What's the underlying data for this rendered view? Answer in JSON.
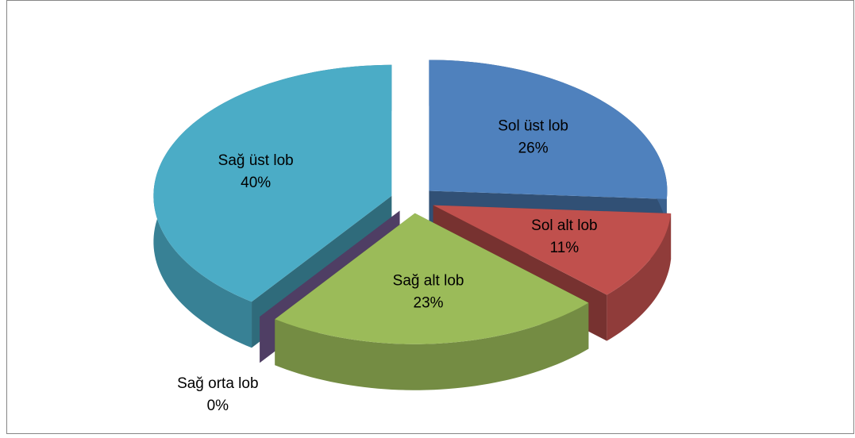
{
  "chart_data": {
    "type": "pie3d",
    "categories": [
      "Sol üst lob",
      "Sol alt lob",
      "Sağ alt lob",
      "Sağ orta lob",
      "Sağ üst lob"
    ],
    "values": [
      26,
      11,
      23,
      0,
      40
    ],
    "value_labels": [
      "26%",
      "11%",
      "23%",
      "0%",
      "40%"
    ],
    "colors": [
      "#4f81bd",
      "#c0504d",
      "#9bbb59",
      "#8064a2",
      "#4bacc6"
    ]
  }
}
